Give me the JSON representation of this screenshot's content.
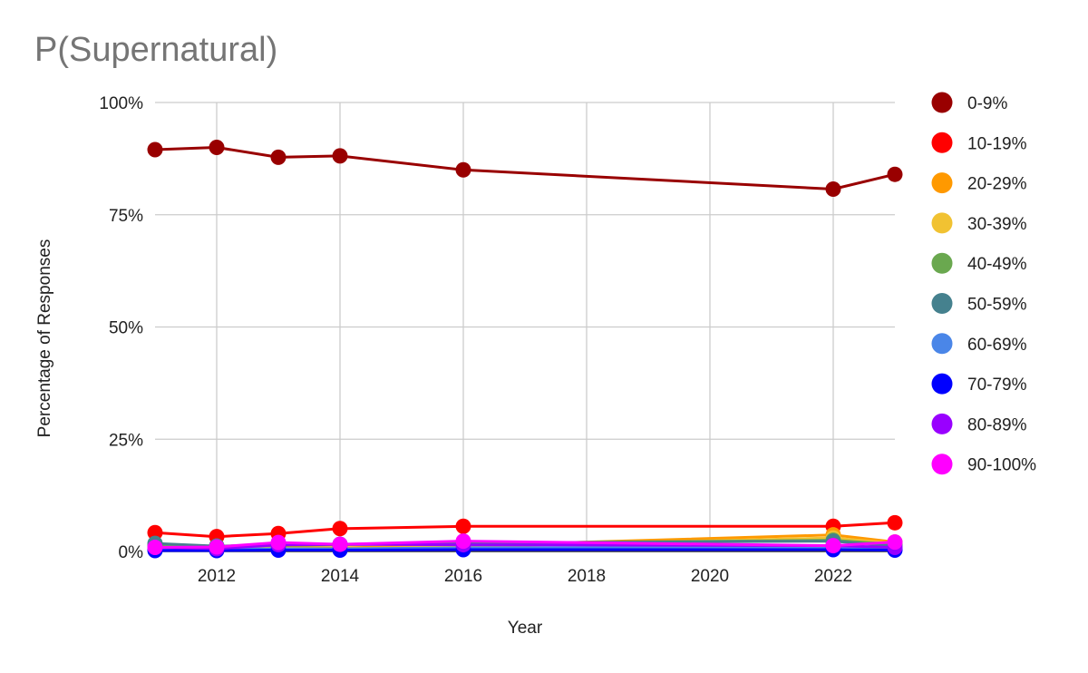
{
  "chart_data": {
    "type": "line",
    "title": "P(Supernatural)",
    "xlabel": "Year",
    "ylabel": "Percentage of Responses",
    "xlim": [
      2011,
      2023
    ],
    "ylim": [
      0,
      100
    ],
    "x_ticks": [
      2012,
      2014,
      2016,
      2018,
      2020,
      2022
    ],
    "x_tick_labels": [
      "2012",
      "2014",
      "2016",
      "2018",
      "2020",
      "2022"
    ],
    "y_ticks": [
      0,
      25,
      50,
      75,
      100
    ],
    "y_tick_labels": [
      "0%",
      "25%",
      "50%",
      "75%",
      "100%"
    ],
    "grid": true,
    "legend_position": "right",
    "x": [
      2011,
      2012,
      2013,
      2014,
      2016,
      2022,
      2023
    ],
    "series": [
      {
        "name": "0-9%",
        "color": "#990000",
        "values": [
          89.5,
          90.0,
          87.8,
          88.1,
          85.0,
          80.7,
          84.0
        ]
      },
      {
        "name": "10-19%",
        "color": "#ff0000",
        "values": [
          4.2,
          3.3,
          4.0,
          5.1,
          5.6,
          5.6,
          6.4
        ]
      },
      {
        "name": "20-29%",
        "color": "#ff9900",
        "values": [
          0.6,
          0.7,
          0.9,
          0.8,
          1.3,
          3.7,
          2.1
        ]
      },
      {
        "name": "30-39%",
        "color": "#f1c232",
        "values": [
          0.4,
          0.6,
          0.7,
          0.6,
          1.1,
          3.0,
          1.8
        ]
      },
      {
        "name": "40-49%",
        "color": "#6aa84f",
        "values": [
          1.3,
          1.2,
          1.4,
          1.5,
          1.8,
          2.5,
          1.6
        ]
      },
      {
        "name": "50-59%",
        "color": "#45818e",
        "values": [
          1.8,
          1.2,
          1.4,
          1.6,
          1.9,
          2.3,
          1.2
        ]
      },
      {
        "name": "60-69%",
        "color": "#4a86e8",
        "values": [
          0.5,
          0.5,
          0.6,
          0.6,
          0.8,
          1.0,
          0.8
        ]
      },
      {
        "name": "70-79%",
        "color": "#0000ff",
        "values": [
          0.2,
          0.2,
          0.3,
          0.3,
          0.4,
          0.4,
          0.3
        ]
      },
      {
        "name": "80-89%",
        "color": "#9900ff",
        "values": [
          0.9,
          0.6,
          1.5,
          1.6,
          1.5,
          1.3,
          0.9
        ]
      },
      {
        "name": "90-100%",
        "color": "#ff00ff",
        "values": [
          0.9,
          1.0,
          2.0,
          1.6,
          2.3,
          1.3,
          2.1
        ]
      }
    ]
  }
}
